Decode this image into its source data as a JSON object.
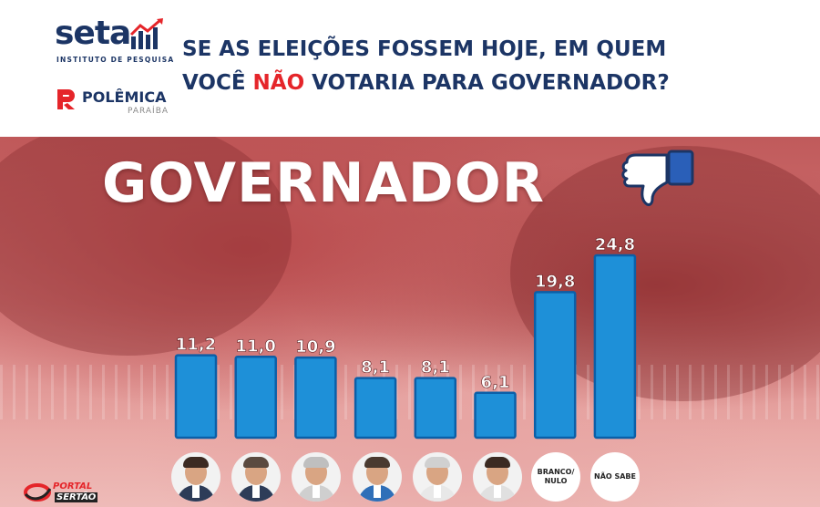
{
  "header": {
    "seta_brand": "seta",
    "seta_subtitle": "INSTITUTO DE PESQUISA",
    "polemica_brand": "POLÊMICA",
    "polemica_subtitle": "PARAÍBA",
    "question_part1": "SE AS ELEIÇÕES FOSSEM HOJE, EM QUEM",
    "question_part2": "VOCÊ ",
    "question_highlight": "NÃO",
    "question_part3": " VOTARIA PARA GOVERNADOR?"
  },
  "section_title": "GOVERNADOR",
  "icons": {
    "thumb": "thumbs-down-icon"
  },
  "colors": {
    "bar": "#1e90d8",
    "bar_edge": "#0b5fa8",
    "highlight": "#e5252a",
    "navy": "#1c3565"
  },
  "chart_data": {
    "type": "bar",
    "title": "GOVERNADOR",
    "categories": [
      "candidato-1",
      "candidato-2",
      "candidato-3",
      "candidato-4",
      "candidato-5",
      "candidato-6",
      "BRANCO/ NULO",
      "NÃO SABE"
    ],
    "values": [
      11.2,
      11.0,
      10.9,
      8.1,
      8.1,
      6.1,
      19.8,
      24.8
    ],
    "value_labels": [
      "11,2",
      "11,0",
      "10,9",
      "8,1",
      "8,1",
      "6,1",
      "19,8",
      "24,8"
    ],
    "ylim": [
      0,
      24.8
    ],
    "grid": false,
    "xlabel": "",
    "ylabel": ""
  },
  "x_labels": {
    "branco_line1": "BRANCO/",
    "branco_line2": "NULO",
    "nao_sabe": "NÃO SABE"
  },
  "footer": {
    "portal_line1": "PORTAL",
    "portal_line2": "SERTÃO"
  }
}
